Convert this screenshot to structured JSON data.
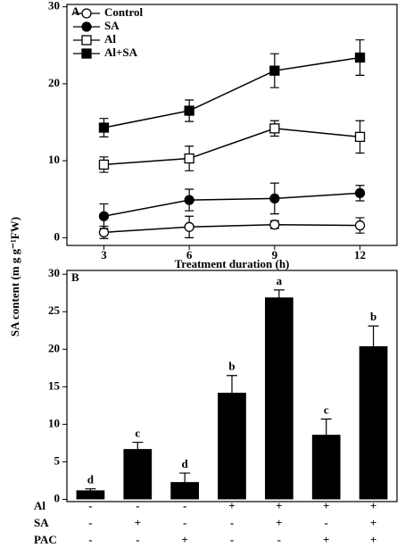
{
  "chart_data": [
    {
      "type": "line",
      "panel": "A",
      "x_label": "Treatment duration (h)",
      "x": [
        3,
        6,
        9,
        12
      ],
      "xlim": [
        1.7,
        13.3
      ],
      "xticks": [
        3,
        6,
        9,
        12
      ],
      "ylim": [
        -1,
        30.3
      ],
      "yticks": [
        0,
        10,
        20,
        30
      ],
      "legend": "upper left",
      "series": [
        {
          "name": "Control",
          "marker": "open-circle",
          "color": "#000000",
          "values": [
            0.7,
            1.4,
            1.7,
            1.6
          ],
          "errors": [
            0.8,
            1.4,
            0.5,
            1.0
          ]
        },
        {
          "name": "SA",
          "marker": "filled-circle",
          "color": "#000000",
          "values": [
            2.8,
            4.9,
            5.1,
            5.8
          ],
          "errors": [
            1.6,
            1.4,
            2.0,
            1.0
          ]
        },
        {
          "name": "Al",
          "marker": "open-square",
          "color": "#000000",
          "values": [
            9.5,
            10.3,
            14.2,
            13.1
          ],
          "errors": [
            1.0,
            1.6,
            1.0,
            2.1
          ]
        },
        {
          "name": "Al+SA",
          "marker": "filled-square",
          "color": "#000000",
          "values": [
            14.3,
            16.5,
            21.7,
            23.4
          ],
          "errors": [
            1.2,
            1.4,
            2.2,
            2.3
          ]
        }
      ]
    },
    {
      "type": "bar",
      "panel": "B",
      "y_label": "SA content (m g g⁻¹FW)",
      "values": [
        1.2,
        6.7,
        2.3,
        14.2,
        26.9,
        8.6,
        20.4
      ],
      "errors": [
        0.2,
        0.9,
        1.2,
        2.3,
        1.0,
        2.1,
        2.7
      ],
      "letters": [
        "d",
        "c",
        "d",
        "b",
        "a",
        "c",
        "b"
      ],
      "color": "#000000",
      "ylim": [
        -0.3,
        30.5
      ],
      "yticks": [
        0,
        5,
        10,
        15,
        20,
        25,
        30
      ],
      "treatments": [
        {
          "name": "Al",
          "signs": [
            "-",
            "-",
            "-",
            "+",
            "+",
            "+",
            "+"
          ]
        },
        {
          "name": "SA",
          "signs": [
            "-",
            "+",
            "-",
            "-",
            "+",
            "-",
            "+"
          ]
        },
        {
          "name": "PAC",
          "signs": [
            "-",
            "-",
            "+",
            "-",
            "-",
            "+",
            "+"
          ]
        }
      ]
    }
  ]
}
